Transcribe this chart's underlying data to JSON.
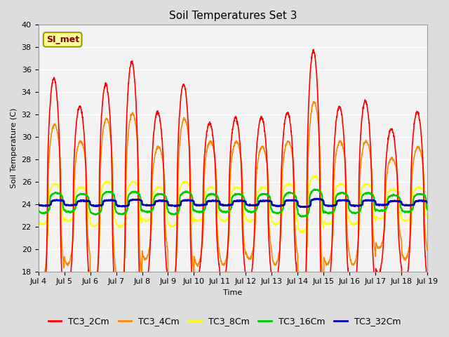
{
  "title": "Soil Temperatures Set 3",
  "xlabel": "Time",
  "ylabel": "Soil Temperature (C)",
  "ylim": [
    18,
    40
  ],
  "xlim": [
    0,
    15
  ],
  "xtick_labels": [
    "Jul 4",
    "Jul 5",
    "Jul 6",
    "Jul 7",
    "Jul 8",
    "Jul 9",
    "Jul 10",
    "Jul 11",
    "Jul 12",
    "Jul 13",
    "Jul 14",
    "Jul 15",
    "Jul 16",
    "Jul 17",
    "Jul 18",
    "Jul 19"
  ],
  "ytick_values": [
    18,
    20,
    22,
    24,
    26,
    28,
    30,
    32,
    34,
    36,
    38,
    40
  ],
  "series": {
    "TC3_2Cm": {
      "color": "#FF0000"
    },
    "TC3_4Cm": {
      "color": "#FF8800"
    },
    "TC3_8Cm": {
      "color": "#FFFF00"
    },
    "TC3_16Cm": {
      "color": "#00CC00"
    },
    "TC3_32Cm": {
      "color": "#0000BB"
    }
  },
  "annotation_text": "SI_met",
  "annotation_bg": "#FFFF99",
  "annotation_border": "#999900",
  "annotation_text_color": "#880000",
  "background_color": "#DDDDDD",
  "plot_bg_color": "#F2F2F2",
  "grid_color": "#FFFFFF",
  "title_fontsize": 11,
  "axis_fontsize": 8,
  "legend_fontsize": 9,
  "linewidth": 1.2,
  "days": 15,
  "pts_per_day": 144,
  "peak_amps_2cm": [
    11,
    8.5,
    10.5,
    12.5,
    8,
    10.5,
    7,
    7.5,
    7.5,
    8,
    13.5,
    8.5,
    9,
    6.5,
    8
  ],
  "peak_amps_4cm": [
    7,
    5.5,
    7.5,
    8,
    5,
    7.5,
    5.5,
    5.5,
    5,
    5.5,
    9,
    5.5,
    5.5,
    4,
    5
  ],
  "peak_amps_8cm": [
    1.8,
    1.5,
    2.0,
    2.0,
    1.5,
    2.0,
    1.5,
    1.5,
    1.5,
    1.8,
    2.5,
    1.8,
    1.8,
    1.3,
    1.5
  ],
  "peak_amps_16cm": [
    0.9,
    0.8,
    1.0,
    1.0,
    0.8,
    1.0,
    0.8,
    0.8,
    0.8,
    0.9,
    1.2,
    0.9,
    0.9,
    0.7,
    0.8
  ],
  "peak_amps_32cm": [
    0.25,
    0.2,
    0.25,
    0.3,
    0.2,
    0.25,
    0.2,
    0.2,
    0.2,
    0.25,
    0.35,
    0.25,
    0.25,
    0.18,
    0.2
  ]
}
